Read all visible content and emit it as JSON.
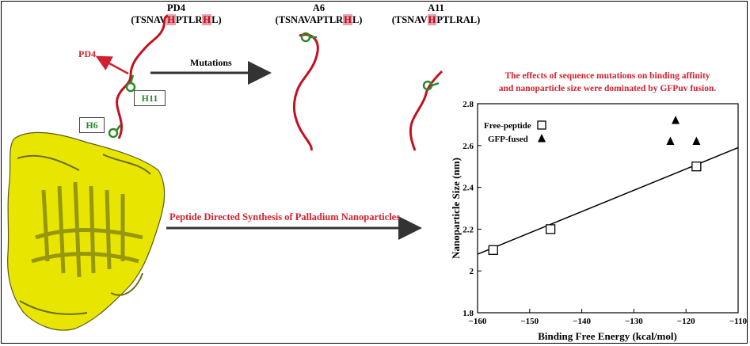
{
  "peptides": {
    "pd4": {
      "name": "PD4",
      "seq": [
        "(TSNAV",
        "H",
        "PTLR",
        "H",
        "L)"
      ]
    },
    "a6": {
      "name": "A6",
      "seq": [
        "(TSNAVAPTLR",
        "H",
        "L)"
      ]
    },
    "a11": {
      "name": "A11",
      "seq": [
        "(TSNAV",
        "H",
        "PTLRAL)"
      ]
    }
  },
  "labels": {
    "pd4_arrow": "PD4",
    "h11": "H11",
    "h6": "H6",
    "mutations": "Mutations",
    "synthesis": "Peptide Directed Synthesis of Palladium Nanoparticles",
    "effects_line1": "The effects of sequence mutations on binding affinity",
    "effects_line2": "and nanoparticle size were dominated by GFPuv fusion."
  },
  "colors": {
    "accent_red": "#d4202e",
    "protein_yellow": "#e8e600",
    "ligand_green": "#2a8a2a"
  },
  "chart_data": {
    "type": "scatter",
    "xlabel": "Binding Free Energy (kcal/mol)",
    "ylabel": "Nanoparticle Size (nm)",
    "xlim": [
      -160,
      -110
    ],
    "ylim": [
      1.8,
      2.8
    ],
    "xticks": [
      -160,
      -150,
      -140,
      -130,
      -120,
      -110
    ],
    "yticks": [
      1.8,
      2,
      2.2,
      2.4,
      2.6,
      2.8
    ],
    "ytick_labels": [
      "1.8",
      "2",
      "2.2",
      "2.4",
      "2.6",
      "2.8"
    ],
    "legend": [
      "Free-peptide",
      "GFP-fused"
    ],
    "legend_position": "top-left",
    "series": [
      {
        "name": "Free-peptide",
        "marker": "open-square",
        "points": [
          [
            -157,
            2.1
          ],
          [
            -146,
            2.2
          ],
          [
            -118,
            2.5
          ]
        ]
      },
      {
        "name": "GFP-fused",
        "marker": "filled-triangle",
        "points": [
          [
            -122,
            2.72
          ],
          [
            -123,
            2.62
          ],
          [
            -118,
            2.62
          ]
        ]
      }
    ],
    "fit_line": [
      [
        -160,
        2.08
      ],
      [
        -110,
        2.59
      ]
    ]
  }
}
